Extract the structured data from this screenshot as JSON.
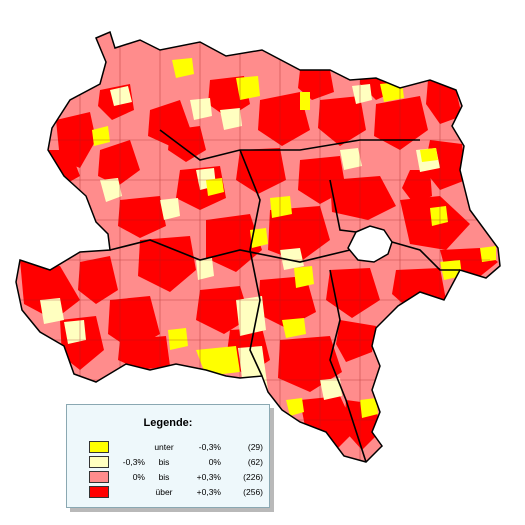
{
  "colors": {
    "below": "#ffff00",
    "slight_neg": "#ffffc0",
    "slight_pos": "#ff8c8c",
    "above": "#ff0000",
    "border": "#000000",
    "background": "#ffffff"
  },
  "legend": {
    "title": "Legende:",
    "items": [
      {
        "from": "",
        "mid": "unter",
        "to": "-0,3%",
        "count": "(29)",
        "color": "#ffff00"
      },
      {
        "from": "-0,3%",
        "mid": "bis",
        "to": "0%",
        "count": "(62)",
        "color": "#ffffc0"
      },
      {
        "from": "0%",
        "mid": "bis",
        "to": "+0,3%",
        "count": "(226)",
        "color": "#ff8c8c"
      },
      {
        "from": "",
        "mid": "über",
        "to": "+0,3%",
        "count": "(256)",
        "color": "#ff0000"
      }
    ]
  }
}
